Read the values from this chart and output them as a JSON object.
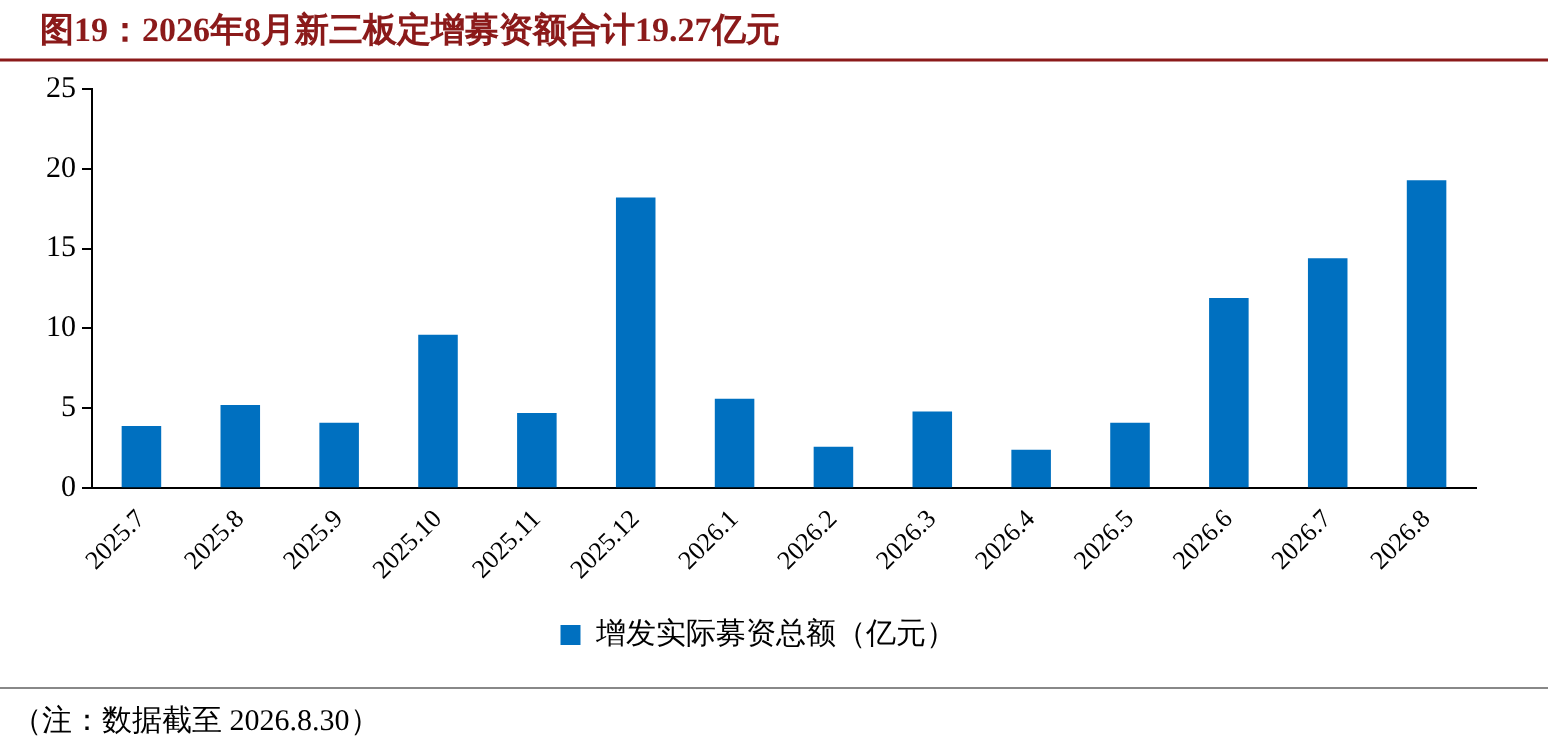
{
  "chart_data": {
    "type": "bar",
    "title": "图19：2026年8月新三板定增募资额合计19.27亿元",
    "categories": [
      "2025.7",
      "2025.8",
      "2025.9",
      "2025.10",
      "2025.11",
      "2025.12",
      "2026.1",
      "2026.2",
      "2026.3",
      "2026.4",
      "2026.5",
      "2026.6",
      "2026.7",
      "2026.8"
    ],
    "series": [
      {
        "name": "增发实际募资总额（亿元）",
        "color": "#0070c0",
        "values": [
          3.9,
          5.2,
          4.1,
          9.6,
          4.7,
          18.2,
          5.6,
          2.6,
          4.8,
          2.4,
          4.1,
          11.9,
          14.4,
          19.27
        ]
      }
    ],
    "ylim": [
      0,
      25
    ],
    "yticks": [
      0,
      5,
      10,
      15,
      20,
      25
    ],
    "grid": false,
    "legend": "bottom",
    "annotations": [
      "（注：数据截至 2026.8.30）"
    ]
  }
}
